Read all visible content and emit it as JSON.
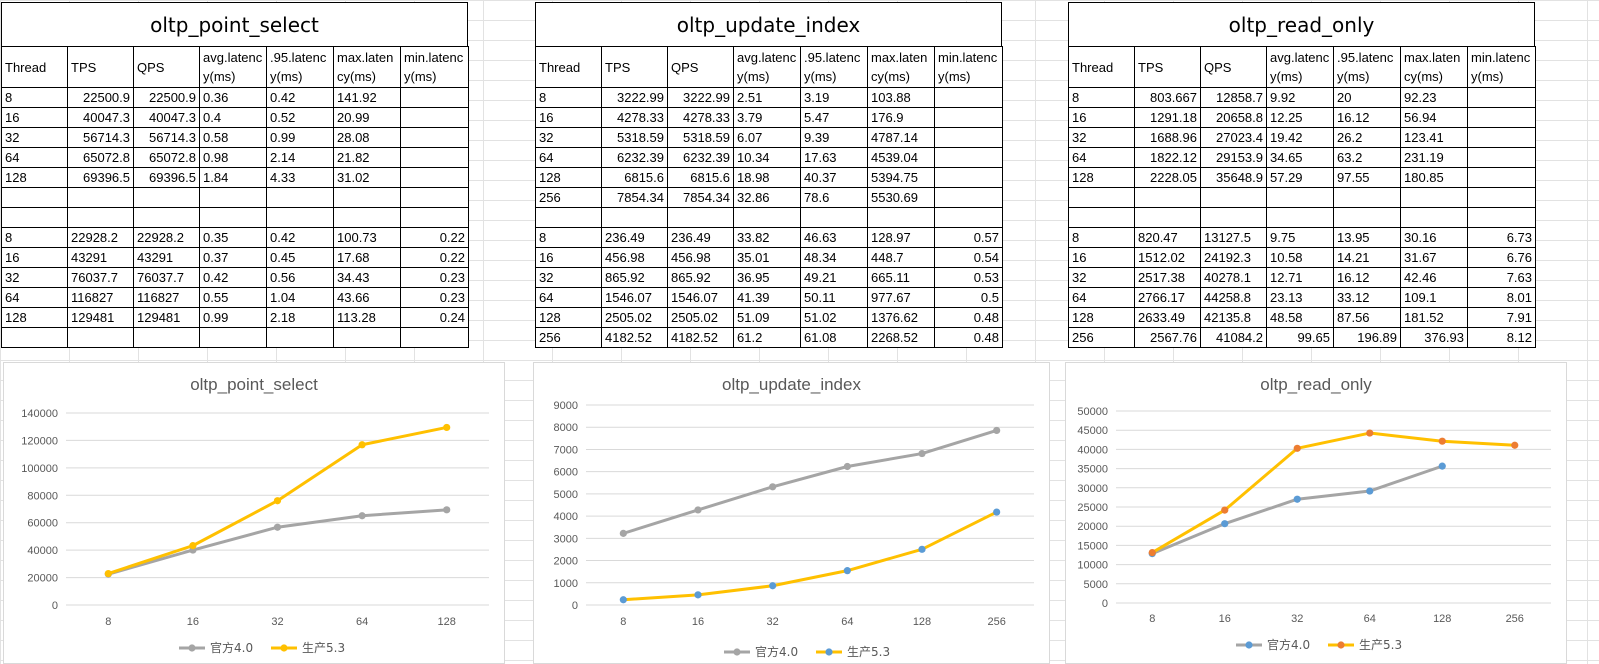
{
  "tables": [
    {
      "title": "oltp_point_select",
      "headers": [
        "Thread",
        "TPS",
        "QPS",
        "avg.latency(ms)",
        ".95.latency(ms)",
        "max.latency(ms)",
        "min.latency(ms)"
      ],
      "group1": [
        [
          "8",
          "22500.9",
          "22500.9",
          "0.36",
          "0.42",
          "141.92",
          ""
        ],
        [
          "16",
          "40047.3",
          "40047.3",
          "0.4",
          "0.52",
          "20.99",
          ""
        ],
        [
          "32",
          "56714.3",
          "56714.3",
          "0.58",
          "0.99",
          "28.08",
          ""
        ],
        [
          "64",
          "65072.8",
          "65072.8",
          "0.98",
          "2.14",
          "21.82",
          ""
        ],
        [
          "128",
          "69396.5",
          "69396.5",
          "1.84",
          "4.33",
          "31.02",
          ""
        ],
        [
          "",
          "",
          "",
          "",
          "",
          "",
          ""
        ]
      ],
      "group2": [
        [
          "8",
          "22928.2",
          "22928.2",
          "0.35",
          "0.42",
          "100.73",
          "0.22"
        ],
        [
          "16",
          "43291",
          "43291",
          "0.37",
          "0.45",
          "17.68",
          "0.22"
        ],
        [
          "32",
          "76037.7",
          "76037.7",
          "0.42",
          "0.56",
          "34.43",
          "0.23"
        ],
        [
          "64",
          "116827",
          "116827",
          "0.55",
          "1.04",
          "43.66",
          "0.23"
        ],
        [
          "128",
          "129481",
          "129481",
          "0.99",
          "2.18",
          "113.28",
          "0.24"
        ],
        [
          "",
          "",
          "",
          "",
          "",
          "",
          ""
        ]
      ]
    },
    {
      "title": "oltp_update_index",
      "headers": [
        "Thread",
        "TPS",
        "QPS",
        "avg.latency(ms)",
        ".95.latency(ms)",
        "max.latency(ms)",
        "min.latency(ms)"
      ],
      "group1": [
        [
          "8",
          "3222.99",
          "3222.99",
          "2.51",
          "3.19",
          "103.88",
          ""
        ],
        [
          "16",
          "4278.33",
          "4278.33",
          "3.79",
          "5.47",
          "176.9",
          ""
        ],
        [
          "32",
          "5318.59",
          "5318.59",
          "6.07",
          "9.39",
          "4787.14",
          ""
        ],
        [
          "64",
          "6232.39",
          "6232.39",
          "10.34",
          "17.63",
          "4539.04",
          ""
        ],
        [
          "128",
          "6815.6",
          "6815.6",
          "18.98",
          "40.37",
          "5394.75",
          ""
        ],
        [
          "256",
          "7854.34",
          "7854.34",
          "32.86",
          "78.6",
          "5530.69",
          ""
        ]
      ],
      "group2": [
        [
          "8",
          "236.49",
          "236.49",
          "33.82",
          "46.63",
          "128.97",
          "0.57"
        ],
        [
          "16",
          "456.98",
          "456.98",
          "35.01",
          "48.34",
          "448.7",
          "0.54"
        ],
        [
          "32",
          "865.92",
          "865.92",
          "36.95",
          "49.21",
          "665.11",
          "0.53"
        ],
        [
          "64",
          "1546.07",
          "1546.07",
          "41.39",
          "50.11",
          "977.67",
          "0.5"
        ],
        [
          "128",
          "2505.02",
          "2505.02",
          "51.09",
          "51.02",
          "1376.62",
          "0.48"
        ],
        [
          "256",
          "4182.52",
          "4182.52",
          "61.2",
          "61.08",
          "2268.52",
          "0.48"
        ]
      ]
    },
    {
      "title": "oltp_read_only",
      "headers": [
        "Thread",
        "TPS",
        "QPS",
        "avg.latency(ms)",
        ".95.latency(ms)",
        "max.latency(ms)",
        "min.latency(ms)"
      ],
      "group1": [
        [
          "8",
          "803.667",
          "12858.7",
          "9.92",
          "20",
          "92.23",
          ""
        ],
        [
          "16",
          "1291.18",
          "20658.8",
          "12.25",
          "16.12",
          "56.94",
          ""
        ],
        [
          "32",
          "1688.96",
          "27023.4",
          "19.42",
          "26.2",
          "123.41",
          ""
        ],
        [
          "64",
          "1822.12",
          "29153.9",
          "34.65",
          "63.2",
          "231.19",
          ""
        ],
        [
          "128",
          "2228.05",
          "35648.9",
          "57.29",
          "97.55",
          "180.85",
          ""
        ],
        [
          "",
          "",
          "",
          "",
          "",
          "",
          ""
        ]
      ],
      "group2": [
        [
          "8",
          "820.47",
          "13127.5",
          "9.75",
          "13.95",
          "30.16",
          "6.73"
        ],
        [
          "16",
          "1512.02",
          "24192.3",
          "10.58",
          "14.21",
          "31.67",
          "6.76"
        ],
        [
          "32",
          "2517.38",
          "40278.1",
          "12.71",
          "16.12",
          "42.46",
          "7.63"
        ],
        [
          "64",
          "2766.17",
          "44258.8",
          "23.13",
          "33.12",
          "109.1",
          "8.01"
        ],
        [
          "128",
          "2633.49",
          "42135.8",
          "48.58",
          "87.56",
          "181.52",
          "7.91"
        ],
        [
          "256",
          "2567.76",
          "41084.2",
          "99.65",
          "196.89",
          "376.93",
          "8.12"
        ]
      ]
    }
  ],
  "chart_data": [
    {
      "type": "line",
      "title": "oltp_point_select",
      "categories": [
        "8",
        "16",
        "32",
        "64",
        "128"
      ],
      "ylim": [
        0,
        140000
      ],
      "yticks": [
        "0",
        "20000",
        "40000",
        "60000",
        "80000",
        "100000",
        "120000",
        "140000"
      ],
      "series": [
        {
          "name": "官方4.0",
          "color": "#a5a5a5",
          "marker_color": "#a5a5a5",
          "values": [
            22500.9,
            40047.3,
            56714.3,
            65072.8,
            69396.5
          ]
        },
        {
          "name": "生产5.3",
          "color": "#ffc000",
          "marker_color": "#ffc000",
          "values": [
            22928.2,
            43291,
            76037.7,
            116827,
            129481
          ]
        }
      ],
      "legend": "bottom"
    },
    {
      "type": "line",
      "title": "oltp_update_index",
      "categories": [
        "8",
        "16",
        "32",
        "64",
        "128",
        "256"
      ],
      "ylim": [
        0,
        9000
      ],
      "yticks": [
        "0",
        "1000",
        "2000",
        "3000",
        "4000",
        "5000",
        "6000",
        "7000",
        "8000",
        "9000"
      ],
      "series": [
        {
          "name": "官方4.0",
          "color": "#a5a5a5",
          "marker_color": "#a5a5a5",
          "values": [
            3222.99,
            4278.33,
            5318.59,
            6232.39,
            6815.6,
            7854.34
          ]
        },
        {
          "name": "生产5.3",
          "color": "#ffc000",
          "marker_color": "#5b9bd5",
          "values": [
            236.49,
            456.98,
            865.92,
            1546.07,
            2505.02,
            4182.52
          ]
        }
      ],
      "legend": "bottom"
    },
    {
      "type": "line",
      "title": "oltp_read_only",
      "categories": [
        "8",
        "16",
        "32",
        "64",
        "128",
        "256"
      ],
      "ylim": [
        0,
        50000
      ],
      "yticks": [
        "0",
        "5000",
        "10000",
        "15000",
        "20000",
        "25000",
        "30000",
        "35000",
        "40000",
        "45000",
        "50000"
      ],
      "series": [
        {
          "name": "官方4.0",
          "color": "#a5a5a5",
          "marker_color": "#5b9bd5",
          "values": [
            12858.7,
            20658.8,
            27023.4,
            29153.9,
            35648.9,
            null
          ]
        },
        {
          "name": "生产5.3",
          "color": "#ffc000",
          "marker_color": "#ed7d31",
          "values": [
            13127.5,
            24192.3,
            40278.1,
            44258.8,
            42135.8,
            41084.2
          ]
        }
      ],
      "legend": "bottom"
    }
  ]
}
